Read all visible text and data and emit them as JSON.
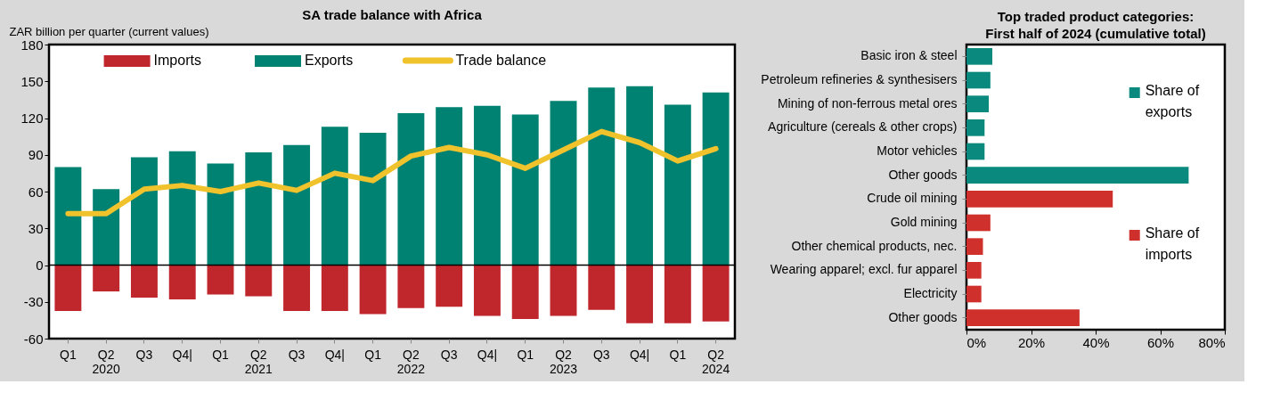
{
  "chart_data": [
    {
      "type": "bar",
      "title": "SA trade balance with Africa",
      "ylabel": "ZAR billion per quarter (current values)",
      "categories": [
        "Q1",
        "Q2\n2020",
        "Q3",
        "Q4|",
        "Q1",
        "Q2\n2021",
        "Q3",
        "Q4|",
        "Q1",
        "Q2\n2022",
        "Q3",
        "Q4|",
        "Q1",
        "Q2\n2023",
        "Q3",
        "Q4|",
        "Q1",
        "Q2\n2024"
      ],
      "series": [
        {
          "name": "Imports",
          "type": "bar",
          "color": "#c0272d",
          "values": [
            -37.5,
            -21.5,
            -26.5,
            -28,
            -24,
            -25.5,
            -37.5,
            -37.5,
            -40,
            -35,
            -34,
            -41.5,
            -44,
            -41.5,
            -36.5,
            -47.5,
            -47.5,
            -46
          ]
        },
        {
          "name": "Exports",
          "type": "bar",
          "color": "#008272",
          "values": [
            80,
            62,
            88,
            93,
            83,
            92,
            98,
            113,
            108,
            124,
            129,
            130,
            123,
            134,
            145,
            146,
            131,
            141
          ]
        },
        {
          "name": "Trade balance",
          "type": "line",
          "color": "#f0c22c",
          "values": [
            42,
            42,
            62,
            65,
            60,
            67,
            61,
            75,
            69,
            89,
            96,
            90,
            79,
            94,
            109,
            100,
            85,
            95
          ]
        }
      ],
      "ylim": [
        -60,
        180
      ],
      "yticks": [
        -60,
        -30,
        0,
        30,
        60,
        90,
        120,
        150,
        180
      ],
      "ref_lines": [
        {
          "axis": "y",
          "value": 0,
          "color": "#000000"
        }
      ],
      "stacked": true,
      "legend": "top"
    },
    {
      "type": "bar",
      "orientation": "horizontal",
      "title": "Top traded product categories:",
      "subtitle": "First half of 2024 (cumulative total)",
      "categories": [
        "Basic iron & steel",
        "Petroleum refineries & synthesisers",
        "Mining of non-ferrous metal ores",
        "Agriculture (cereals & other crops)",
        "Motor vehicles",
        "Other goods",
        "Crude oil mining",
        "Gold  mining",
        "Other chemical products, nec.",
        "Wearing apparel; excl. fur apparel",
        "Electricity",
        "Other goods"
      ],
      "series": [
        {
          "name": "Share of exports",
          "color": "#0a8a7e",
          "values": [
            8,
            7.4,
            6.9,
            5.6,
            5.6,
            68.8,
            null,
            null,
            null,
            null,
            null,
            null
          ]
        },
        {
          "name": "Share of imports",
          "color": "#d0302b",
          "values": [
            null,
            null,
            null,
            null,
            null,
            null,
            45.3,
            7.4,
            5.1,
            4.6,
            4.6,
            35
          ]
        }
      ],
      "xlim": [
        0,
        80
      ],
      "xticks": [
        {
          "value": 0,
          "label": "0%"
        },
        {
          "value": 20,
          "label": "20%"
        },
        {
          "value": 40,
          "label": "40%"
        },
        {
          "value": 60,
          "label": "60%"
        },
        {
          "value": 80,
          "label": "80%"
        }
      ],
      "legend": "right"
    }
  ]
}
